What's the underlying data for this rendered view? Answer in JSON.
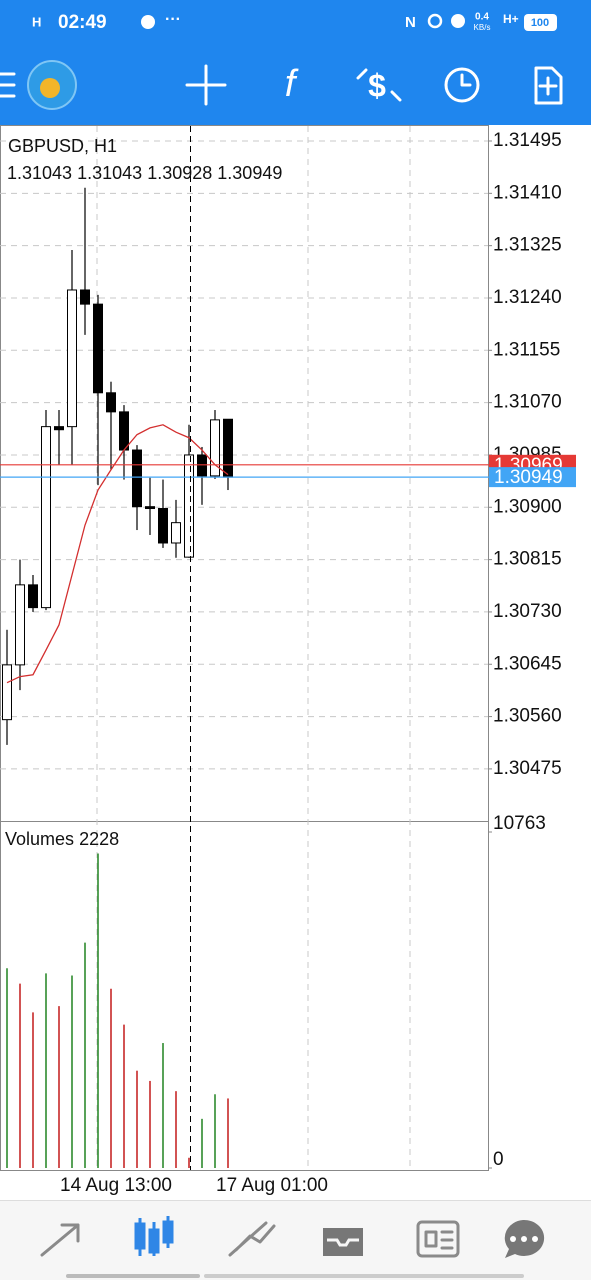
{
  "status_bar": {
    "time": "02:49",
    "speed": "0.4",
    "speed_unit": "KB/s",
    "network": "H+",
    "battery": "100"
  },
  "chart_data": {
    "type": "candlestick",
    "title": "GBPUSD, H1",
    "categories": [
      null,
      null,
      null,
      null,
      "14 Aug 13:00",
      null,
      null,
      null,
      null,
      null,
      null,
      null,
      null,
      null,
      null,
      null,
      "17 Aug 01:00",
      null
    ],
    "open": [
      1.30555,
      1.30644,
      1.30774,
      1.30737,
      1.31031,
      1.31031,
      1.31253,
      1.3123,
      1.31086,
      1.31055,
      1.30993,
      1.30901,
      1.30898,
      1.30842,
      1.30819,
      1.30985,
      1.30951,
      1.31043
    ],
    "high": [
      1.30701,
      1.30815,
      1.3079,
      1.31058,
      1.31058,
      1.31318,
      1.31419,
      1.31245,
      1.31104,
      1.31066,
      1.31001,
      1.30948,
      1.30945,
      1.30912,
      1.31034,
      1.30998,
      1.31058,
      1.31043
    ],
    "low": [
      1.30514,
      1.30603,
      1.3073,
      1.30733,
      1.30969,
      1.30969,
      1.3118,
      1.30936,
      1.30961,
      1.30945,
      1.30863,
      1.30855,
      1.30834,
      1.30818,
      1.30818,
      1.30904,
      1.30946,
      1.30928
    ],
    "close": [
      1.30644,
      1.30774,
      1.30737,
      1.31031,
      1.31026,
      1.31253,
      1.3123,
      1.31086,
      1.31055,
      1.30993,
      1.30901,
      1.30898,
      1.30842,
      1.30875,
      1.30985,
      1.30951,
      1.31042,
      1.30949
    ],
    "up_color": "#ffffff",
    "down_color": "#000000",
    "ma": {
      "color": "#d32f2f",
      "values": [
        1.30615,
        1.30625,
        1.30628,
        1.30668,
        1.30709,
        1.3079,
        1.30871,
        1.30928,
        1.30961,
        1.30993,
        1.31018,
        1.31029,
        1.31034,
        1.31022,
        1.31013,
        1.30993,
        1.30969,
        1.30953
      ]
    },
    "ask": {
      "value": 1.30969,
      "color": "#e53935"
    },
    "bid": {
      "value": 1.30949,
      "color": "#42a5f5"
    },
    "ylim": [
      1.30392,
      1.31521
    ],
    "yticks": [
      1.31495,
      {
        "value": 1.3141,
        "label": "1.31410"
      },
      1.31325,
      {
        "value": 1.3124,
        "label": "1.31240"
      },
      1.31155,
      {
        "value": 1.3107,
        "label": "1.31070"
      },
      1.30985,
      {
        "value": 1.309,
        "label": "1.30900"
      },
      1.30815,
      {
        "value": 1.3073,
        "label": "1.30730"
      },
      1.30645,
      {
        "value": 1.3056,
        "label": "1.30560"
      },
      1.30475
    ],
    "grid": true,
    "volumes": {
      "title": "Volumes",
      "values": [
        6398,
        5906,
        4987,
        6234,
        5184,
        6168,
        7218,
        10073,
        5742,
        4593,
        3117,
        2789,
        4003,
        2461,
        328,
        1575,
        2362,
        2228
      ],
      "colors": [
        "#2e8b2e",
        "#c62828",
        "#c62828",
        "#2e8b2e",
        "#c62828",
        "#2e8b2e",
        "#2e8b2e",
        "#2e8b2e",
        "#c62828",
        "#c62828",
        "#c62828",
        "#c62828",
        "#2e8b2e",
        "#c62828",
        "#c62828",
        "#2e8b2e",
        "#2e8b2e",
        "#c62828"
      ],
      "ylim": [
        0,
        10763
      ],
      "yticks": [
        0,
        10763
      ]
    }
  }
}
